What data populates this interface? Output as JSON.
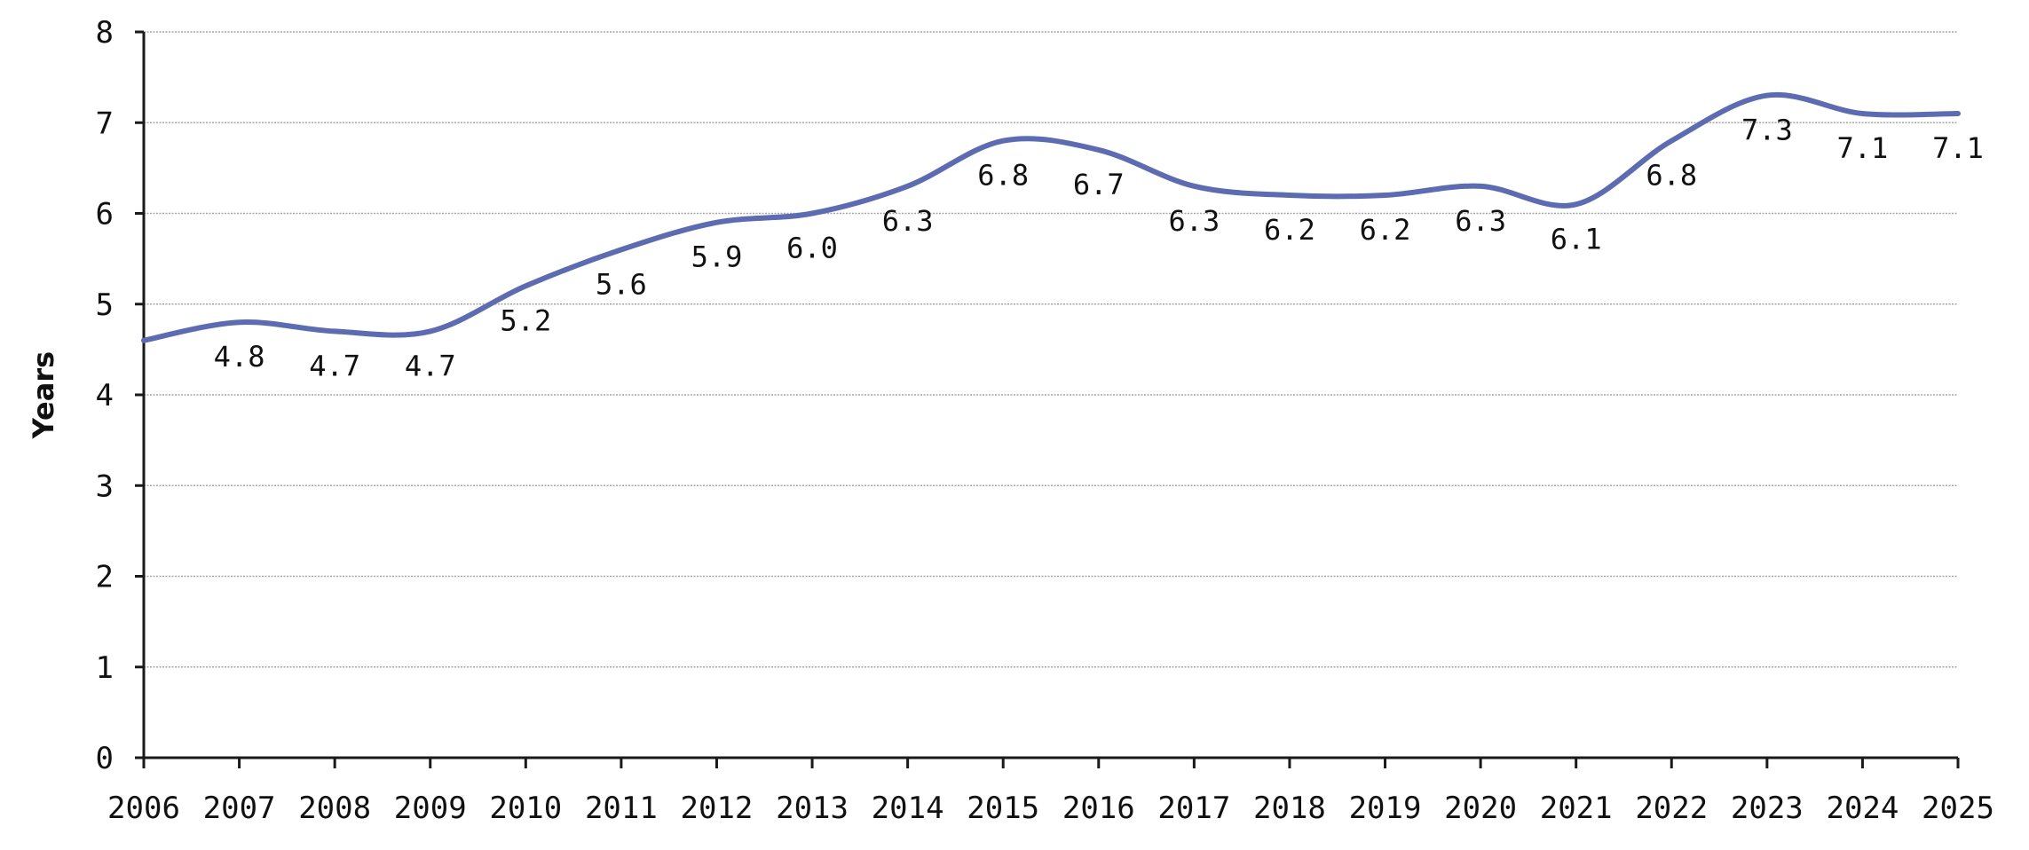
{
  "chart_data": {
    "type": "line",
    "title": "",
    "xlabel": "",
    "ylabel": "Years",
    "x": [
      "2006",
      "2007",
      "2008",
      "2009",
      "2010",
      "2011",
      "2012",
      "2013",
      "2014",
      "2015",
      "2016",
      "2017",
      "2018",
      "2019",
      "2020",
      "2021",
      "2022",
      "2023",
      "2024",
      "2025"
    ],
    "series": [
      {
        "values": [
          4.6,
          4.8,
          4.7,
          4.7,
          5.2,
          5.6,
          5.9,
          6.0,
          6.3,
          6.8,
          6.7,
          6.3,
          6.2,
          6.2,
          6.3,
          6.1,
          6.8,
          7.3,
          7.1,
          7.1
        ],
        "labels": [
          "",
          "4.8",
          "4.7",
          "4.7",
          "5.2",
          "5.6",
          "5.9",
          "6.0",
          "6.3",
          "6.8",
          "6.7",
          "6.3",
          "6.2",
          "6.2",
          "6.3",
          "6.1",
          "6.8",
          "7.3",
          "7.1",
          "7.1"
        ],
        "color": "#5b6bb5"
      }
    ],
    "ylim": [
      0,
      8
    ],
    "yticks": [
      "0",
      "1",
      "2",
      "3",
      "4",
      "5",
      "6",
      "7",
      "8"
    ],
    "grid": true,
    "legend": "none"
  }
}
